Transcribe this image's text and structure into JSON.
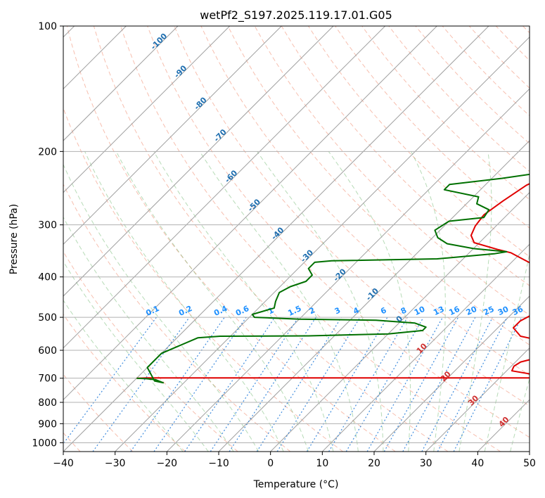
{
  "chart_data": {
    "type": "line",
    "title": "wetPf2_S197.2025.119.17.01.G05",
    "xlabel": "Temperature (°C)",
    "ylabel": "Pressure (hPa)",
    "xlim": [
      -40,
      50
    ],
    "ylim": [
      1050,
      100
    ],
    "y_scale": "log",
    "x_ticks": [
      -40,
      -30,
      -20,
      -10,
      0,
      10,
      20,
      30,
      40,
      50
    ],
    "x_tick_labels": [
      "−40",
      "−30",
      "−20",
      "−10",
      "0",
      "10",
      "20",
      "30",
      "40",
      "50"
    ],
    "y_ticks": [
      100,
      200,
      300,
      400,
      500,
      600,
      700,
      800,
      900,
      1000
    ],
    "y_tick_labels": [
      "100",
      "200",
      "300",
      "400",
      "500",
      "600",
      "700",
      "800",
      "900",
      "1000"
    ],
    "grid": true,
    "background_lines": {
      "isotherms": "skewed gray",
      "dry_adiabats": "light red dashed",
      "moist_adiabats": "light green dashed",
      "mixing_ratio_lines": "blue dotted"
    },
    "colors": {
      "temperature": "#e00000",
      "dewpoint": "#007000",
      "isotherm_label": "#1f6fb0",
      "mixing_ratio_label": "#1e90ff",
      "dry_adiabat_label": "#d03030",
      "grid": "#b0b0b0"
    },
    "isotherm_labels": [
      "-100",
      "-90",
      "-80",
      "-70",
      "-60",
      "-50",
      "-40",
      "-30",
      "-20",
      "-10",
      "0",
      "10",
      "20",
      "30",
      "40"
    ],
    "mixing_ratio_labels": [
      "0.1",
      "0.2",
      "0.4",
      "0.6",
      "1",
      "1.5",
      "2",
      "3",
      "4",
      "6",
      "8",
      "10",
      "13",
      "16",
      "20",
      "25",
      "30",
      "36"
    ],
    "series": [
      {
        "name": "temperature",
        "points": [
          [
            -40,
            700
          ],
          [
            -38,
            699
          ],
          [
            45,
            699
          ],
          [
            51,
            706
          ],
          [
            48,
            715
          ],
          [
            46,
            717
          ],
          [
            50,
            718
          ],
          [
            52,
            718
          ],
          [
            45,
            701
          ],
          [
            37,
            689
          ],
          [
            31,
            672
          ],
          [
            30.5,
            655
          ],
          [
            31,
            640
          ],
          [
            33,
            628
          ],
          [
            40,
            611
          ],
          [
            43,
            600
          ],
          [
            40,
            592
          ],
          [
            33,
            575
          ],
          [
            26,
            555
          ],
          [
            23,
            530
          ],
          [
            23,
            510
          ],
          [
            24,
            494
          ],
          [
            28,
            489
          ],
          [
            33,
            488
          ],
          [
            39,
            486
          ],
          [
            42,
            470
          ],
          [
            43,
            455
          ],
          [
            41,
            444
          ],
          [
            35,
            433
          ],
          [
            28,
            410
          ],
          [
            20,
            392
          ],
          [
            15,
            375
          ],
          [
            10,
            357
          ],
          [
            8,
            350
          ],
          [
            5,
            344
          ],
          [
            -1,
            331
          ],
          [
            -3,
            318
          ],
          [
            -4,
            302
          ],
          [
            -4.5,
            284
          ],
          [
            -3.5,
            263
          ],
          [
            -2,
            241
          ],
          [
            1,
            223
          ],
          [
            4,
            210
          ],
          [
            2,
            201
          ],
          [
            -2,
            191
          ],
          [
            -4,
            179
          ],
          [
            -5,
            169
          ],
          [
            -4,
            157
          ],
          [
            -1,
            148
          ],
          [
            3,
            140
          ],
          [
            5,
            131
          ],
          [
            5,
            120
          ],
          [
            5,
            112
          ],
          [
            4,
            107
          ],
          [
            3,
            100
          ]
        ]
      },
      {
        "name": "dewpoint",
        "points": [
          [
            -40,
            700
          ],
          [
            -38,
            702
          ],
          [
            -36,
            706
          ],
          [
            -35,
            712
          ],
          [
            -34,
            718
          ],
          [
            -36,
            711
          ],
          [
            -40,
            660
          ],
          [
            -40,
            610
          ],
          [
            -36,
            560
          ],
          [
            -32,
            555
          ],
          [
            -15,
            554
          ],
          [
            0,
            548
          ],
          [
            6,
            538
          ],
          [
            6,
            528
          ],
          [
            3,
            516
          ],
          [
            -5,
            508
          ],
          [
            -20,
            505
          ],
          [
            -29,
            500
          ],
          [
            -30,
            492
          ],
          [
            -27,
            475
          ],
          [
            -28,
            458
          ],
          [
            -29,
            436
          ],
          [
            -28,
            422
          ],
          [
            -26,
            410
          ],
          [
            -26,
            396
          ],
          [
            -28,
            382
          ],
          [
            -28,
            369
          ],
          [
            -25,
            366
          ],
          [
            -5,
            362
          ],
          [
            5,
            352
          ],
          [
            7,
            348
          ],
          [
            0,
            342
          ],
          [
            -6,
            333
          ],
          [
            -9,
            322
          ],
          [
            -11,
            309
          ],
          [
            -10,
            294
          ],
          [
            -4,
            288
          ],
          [
            -4.5,
            276
          ],
          [
            -8,
            267
          ],
          [
            -9,
            257
          ],
          [
            -17,
            247
          ],
          [
            -17,
            240
          ],
          [
            -8,
            232
          ],
          [
            0,
            223
          ],
          [
            1.5,
            216
          ],
          [
            -2,
            209
          ],
          [
            -1,
            200
          ],
          [
            -2.5,
            190
          ],
          [
            -5,
            182
          ],
          [
            -4.5,
            172
          ],
          [
            -4,
            164
          ],
          [
            -2,
            158
          ],
          [
            -1.5,
            152
          ],
          [
            -3,
            145
          ],
          [
            -4,
            135
          ],
          [
            -3,
            124
          ],
          [
            -1,
            115
          ],
          [
            1.5,
            107
          ],
          [
            3,
            100
          ]
        ]
      }
    ]
  }
}
